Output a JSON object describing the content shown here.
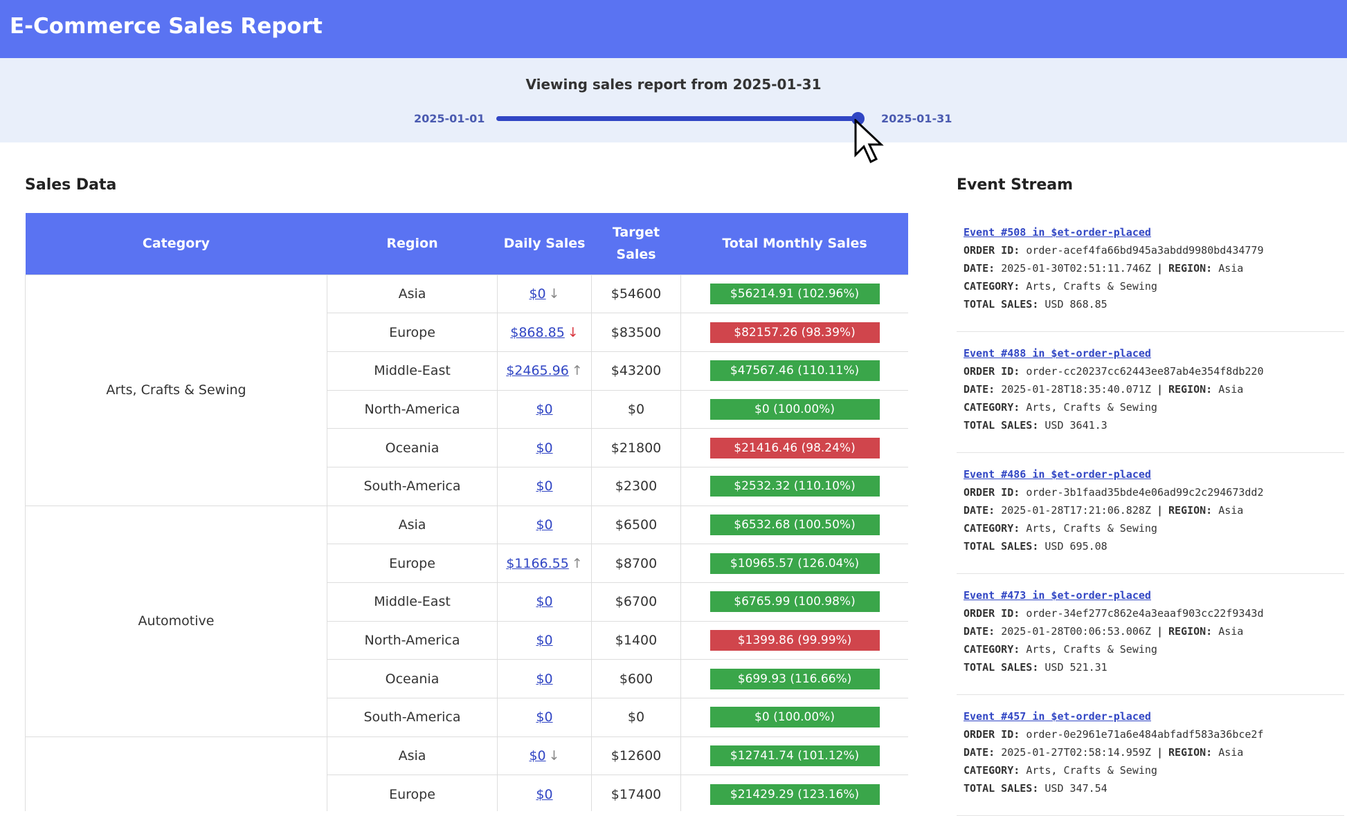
{
  "header": {
    "title": "E-Commerce Sales Report"
  },
  "slider": {
    "caption": "Viewing sales report from 2025-01-31",
    "min_label": "2025-01-01",
    "max_label": "2025-01-31"
  },
  "sales": {
    "title": "Sales Data",
    "columns": [
      "Category",
      "Region",
      "Daily Sales",
      "Target Sales",
      "Total Monthly Sales"
    ],
    "groups": [
      {
        "category": "Arts, Crafts & Sewing",
        "rows": [
          {
            "region": "Asia",
            "daily": "$0",
            "trend": "↓",
            "trend_color": "#888888",
            "target": "$54600",
            "total": "$56214.91 (102.96%)",
            "color": "#3aa64a"
          },
          {
            "region": "Europe",
            "daily": "$868.85",
            "trend": "↓",
            "trend_color": "#d9363e",
            "target": "$83500",
            "total": "$82157.26 (98.39%)",
            "color": "#d0454c"
          },
          {
            "region": "Middle-East",
            "daily": "$2465.96",
            "trend": "↑",
            "trend_color": "#888888",
            "target": "$43200",
            "total": "$47567.46 (110.11%)",
            "color": "#3aa64a"
          },
          {
            "region": "North-America",
            "daily": "$0",
            "target": "$0",
            "total": "$0 (100.00%)",
            "color": "#3aa64a"
          },
          {
            "region": "Oceania",
            "daily": "$0",
            "target": "$21800",
            "total": "$21416.46 (98.24%)",
            "color": "#d0454c"
          },
          {
            "region": "South-America",
            "daily": "$0",
            "target": "$2300",
            "total": "$2532.32 (110.10%)",
            "color": "#3aa64a"
          }
        ]
      },
      {
        "category": "Automotive",
        "rows": [
          {
            "region": "Asia",
            "daily": "$0",
            "target": "$6500",
            "total": "$6532.68 (100.50%)",
            "color": "#3aa64a"
          },
          {
            "region": "Europe",
            "daily": "$1166.55",
            "trend": "↑",
            "trend_color": "#888888",
            "target": "$8700",
            "total": "$10965.57 (126.04%)",
            "color": "#3aa64a"
          },
          {
            "region": "Middle-East",
            "daily": "$0",
            "target": "$6700",
            "total": "$6765.99 (100.98%)",
            "color": "#3aa64a"
          },
          {
            "region": "North-America",
            "daily": "$0",
            "target": "$1400",
            "total": "$1399.86 (99.99%)",
            "color": "#d0454c"
          },
          {
            "region": "Oceania",
            "daily": "$0",
            "target": "$600",
            "total": "$699.93 (116.66%)",
            "color": "#3aa64a"
          },
          {
            "region": "South-America",
            "daily": "$0",
            "target": "$0",
            "total": "$0 (100.00%)",
            "color": "#3aa64a"
          }
        ]
      },
      {
        "category": null,
        "rows": [
          {
            "region": "Asia",
            "daily": "$0",
            "trend": "↓",
            "trend_color": "#888888",
            "target": "$12600",
            "total": "$12741.74 (101.12%)",
            "color": "#3aa64a"
          },
          {
            "region": "Europe",
            "daily": "$0",
            "target": "$17400",
            "total": "$21429.29 (123.16%)",
            "color": "#3aa64a"
          }
        ]
      }
    ]
  },
  "events": {
    "title": "Event Stream",
    "labels": {
      "order_id": "ORDER ID:",
      "date": "DATE:",
      "separator": "|",
      "region": "REGION:",
      "category": "CATEGORY:",
      "total": "TOTAL SALES:"
    },
    "items": [
      {
        "link": "Event #508 in $et-order-placed",
        "order_id": "order-acef4fa66bd945a3abdd9980bd434779",
        "date": "2025-01-30T02:51:11.746Z",
        "region": "Asia",
        "category": "Arts, Crafts & Sewing",
        "total": "USD 868.85"
      },
      {
        "link": "Event #488 in $et-order-placed",
        "order_id": "order-cc20237cc62443ee87ab4e354f8db220",
        "date": "2025-01-28T18:35:40.071Z",
        "region": "Asia",
        "category": "Arts, Crafts & Sewing",
        "total": "USD 3641.3"
      },
      {
        "link": "Event #486 in $et-order-placed",
        "order_id": "order-3b1faad35bde4e06ad99c2c294673dd2",
        "date": "2025-01-28T17:21:06.828Z",
        "region": "Asia",
        "category": "Arts, Crafts & Sewing",
        "total": "USD 695.08"
      },
      {
        "link": "Event #473 in $et-order-placed",
        "order_id": "order-34ef277c862e4a3eaaf903cc22f9343d",
        "date": "2025-01-28T00:06:53.006Z",
        "region": "Asia",
        "category": "Arts, Crafts & Sewing",
        "total": "USD 521.31"
      },
      {
        "link": "Event #457 in $et-order-placed",
        "order_id": "order-0e2961e71a6e484abfadf583a36bce2f",
        "date": "2025-01-27T02:58:14.959Z",
        "region": "Asia",
        "category": "Arts, Crafts & Sewing",
        "total": "USD 347.54"
      }
    ]
  }
}
